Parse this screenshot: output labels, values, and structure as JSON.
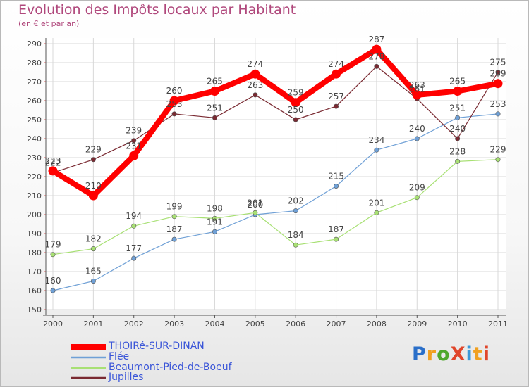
{
  "header": {
    "title": "Evolution des Impôts locaux par Habitant",
    "subtitle": "(en € et par an)"
  },
  "logo": {
    "text": "ProXiti",
    "colors": [
      "#2a6fc9",
      "#f0a020",
      "#4fa82c",
      "#e0452a",
      "#3a98d8",
      "#f0a020",
      "#e0452a"
    ]
  },
  "chart_data": {
    "type": "line",
    "title": "Evolution des Impôts locaux par Habitant",
    "subtitle": "(en € et par an)",
    "x": [
      "2000",
      "2001",
      "2002",
      "2003",
      "2004",
      "2005",
      "2006",
      "2007",
      "2008",
      "2009",
      "2010",
      "2011"
    ],
    "ylim": [
      150,
      290
    ],
    "yticks": [
      150,
      160,
      170,
      180,
      190,
      200,
      210,
      220,
      230,
      240,
      250,
      260,
      270,
      280,
      290
    ],
    "grid": true,
    "legend_position": "bottom-left",
    "series": [
      {
        "name": "THOIRé-SUR-DINAN",
        "color": "#ff0000",
        "values": [
          223,
          210,
          231,
          260,
          265,
          274,
          259,
          274,
          287,
          263,
          265,
          269
        ]
      },
      {
        "name": "Flée",
        "color": "#6fa0d6",
        "values": [
          160,
          165,
          177,
          187,
          191,
          200,
          202,
          215,
          234,
          240,
          251,
          253
        ]
      },
      {
        "name": "Beaumont-Pied-de-Boeuf",
        "color": "#a8e074",
        "values": [
          179,
          182,
          194,
          199,
          198,
          201,
          184,
          187,
          201,
          209,
          228,
          229
        ]
      },
      {
        "name": "Jupilles",
        "color": "#7a2a32",
        "values": [
          222,
          229,
          239,
          253,
          251,
          263,
          250,
          257,
          278,
          261,
          240,
          275
        ]
      }
    ]
  }
}
